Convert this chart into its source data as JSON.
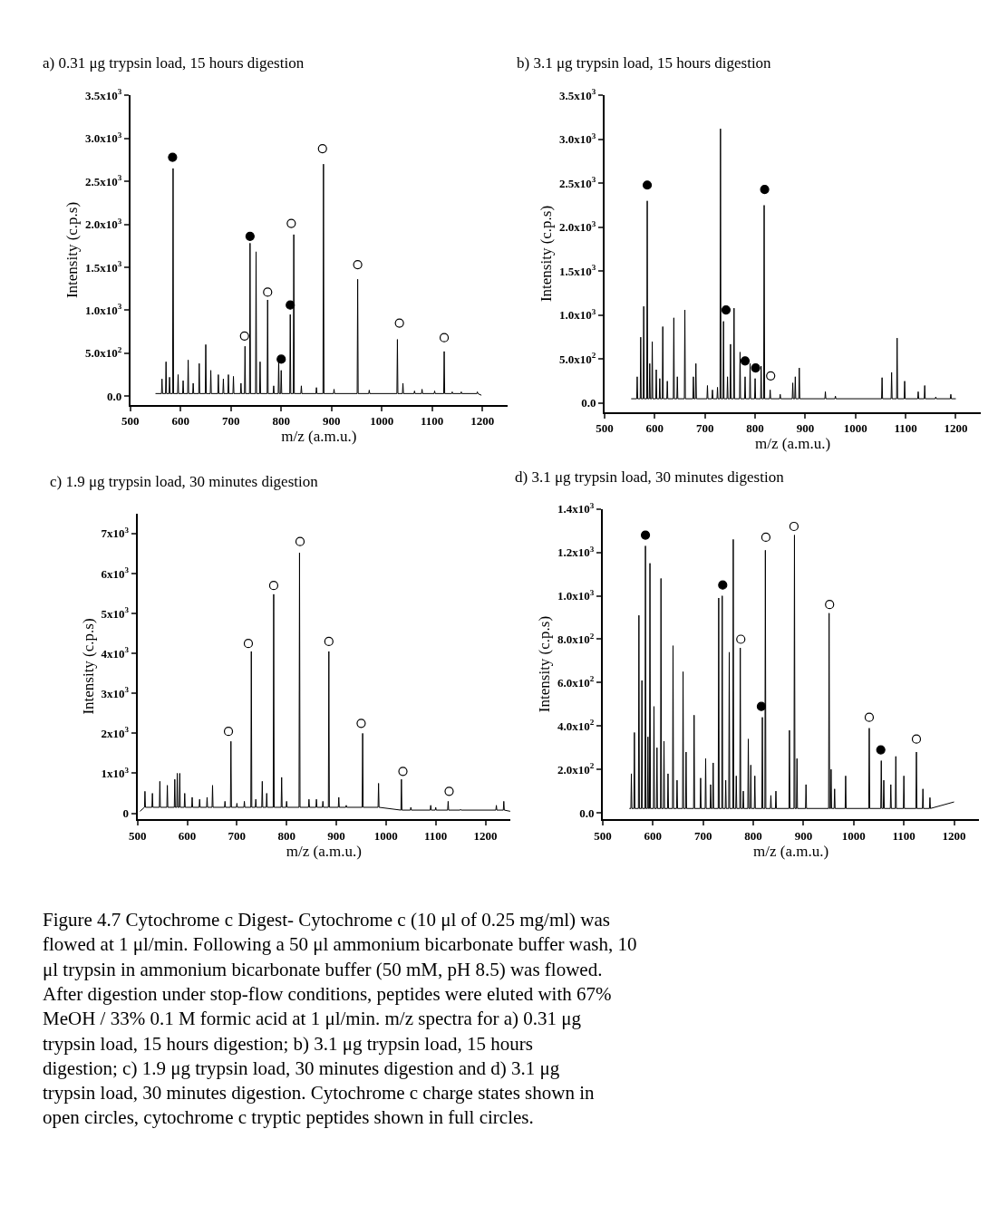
{
  "chart_data": [
    {
      "type": "line",
      "title": "a) 0.31 μg trypsin load, 15 hours digestion",
      "xlabel": "m/z (a.m.u.)",
      "ylabel": "Intensity (c.p.s)",
      "xlim": [
        500,
        1250
      ],
      "xticks": [
        500,
        600,
        700,
        800,
        900,
        1000,
        1100,
        1200
      ],
      "ylim": [
        -100,
        3500
      ],
      "yticks": [
        {
          "value": 0,
          "label": "0.0"
        },
        {
          "value": 500,
          "label": "5.0x10$^{2}$"
        },
        {
          "value": 1000,
          "label": "1.0x10$^{3}$"
        },
        {
          "value": 1500,
          "label": "1.5x10$^{3}$"
        },
        {
          "value": 2000,
          "label": "2.0x10$^{3}$"
        },
        {
          "value": 2500,
          "label": "2.5x10$^{3}$"
        },
        {
          "value": 3000,
          "label": "3.0x10$^{3}$"
        },
        {
          "value": 3500,
          "label": "3.5x10$^{3}$"
        }
      ],
      "series": [
        {
          "color": "#000000",
          "x": [
            550,
            562,
            563,
            564,
            570,
            571,
            572,
            577,
            578,
            579,
            584,
            585,
            586,
            594,
            595,
            596,
            604,
            605,
            606,
            614,
            615,
            616,
            624,
            625,
            626,
            636,
            637,
            638,
            649,
            650,
            651,
            659,
            660,
            661,
            674,
            675,
            676,
            684,
            685,
            686,
            694,
            695,
            696,
            704,
            705,
            706,
            719,
            720,
            721,
            727,
            728,
            729,
            737,
            738,
            739,
            749,
            750,
            751,
            757,
            758,
            759,
            772,
            773,
            774,
            784,
            785,
            786,
            794,
            795,
            796,
            799,
            800,
            801,
            817,
            818,
            819,
            824,
            825,
            826,
            839,
            840,
            841,
            869,
            870,
            871,
            883,
            884,
            885,
            904,
            905,
            906,
            951,
            952,
            953,
            974,
            975,
            976,
            1030,
            1031,
            1032,
            1041,
            1042,
            1043,
            1064,
            1065,
            1066,
            1079,
            1080,
            1081,
            1104,
            1105,
            1106,
            1123,
            1124,
            1125,
            1139,
            1140,
            1141,
            1157,
            1158,
            1159,
            1189,
            1190,
            1191,
            1198
          ],
          "values": [
            30,
            30,
            200,
            30,
            30,
            400,
            30,
            30,
            220,
            30,
            30,
            2650,
            30,
            30,
            250,
            30,
            30,
            180,
            30,
            30,
            420,
            30,
            30,
            150,
            30,
            30,
            380,
            30,
            30,
            600,
            30,
            30,
            300,
            30,
            30,
            250,
            30,
            30,
            200,
            30,
            30,
            250,
            30,
            30,
            230,
            30,
            30,
            150,
            30,
            30,
            580,
            30,
            30,
            1780,
            30,
            30,
            1680,
            30,
            30,
            400,
            30,
            30,
            1120,
            30,
            30,
            120,
            30,
            30,
            420,
            30,
            30,
            300,
            30,
            30,
            950,
            30,
            30,
            1880,
            30,
            30,
            120,
            30,
            30,
            100,
            30,
            30,
            2700,
            30,
            30,
            80,
            30,
            30,
            1360,
            30,
            30,
            70,
            30,
            30,
            660,
            30,
            30,
            150,
            30,
            30,
            60,
            30,
            30,
            80,
            30,
            30,
            60,
            30,
            30,
            520,
            30,
            30,
            50,
            30,
            30,
            50,
            30,
            30,
            50,
            30,
            10
          ]
        },
        {
          "type": "scatter",
          "marker": "circle",
          "color": "#000000",
          "x": [
            584,
            738,
            800,
            818
          ],
          "values": [
            2780,
            1860,
            430,
            1060
          ]
        },
        {
          "type": "scatter",
          "marker": "circle",
          "color": "#ffffff",
          "x": [
            727,
            773,
            820,
            882,
            952,
            1035,
            1124
          ],
          "values": [
            700,
            1210,
            2010,
            2880,
            1530,
            850,
            680
          ]
        }
      ]
    },
    {
      "type": "line",
      "title": "b) 3.1 μg trypsin load, 15 hours digestion",
      "xlabel": "m/z (a.m.u.)",
      "ylabel": "Intensity (c.p.s)",
      "xlim": [
        500,
        1250
      ],
      "xticks": [
        500,
        600,
        700,
        800,
        900,
        1000,
        1100,
        1200
      ],
      "ylim": [
        -100,
        3500
      ],
      "yticks": [
        {
          "value": 0,
          "label": "0.0"
        },
        {
          "value": 500,
          "label": "5.0x10$^{2}$"
        },
        {
          "value": 1000,
          "label": "1.0x10$^{3}$"
        },
        {
          "value": 1500,
          "label": "1.5x10$^{3}$"
        },
        {
          "value": 2000,
          "label": "2.0x10$^{3}$"
        },
        {
          "value": 2500,
          "label": "2.5x10$^{3}$"
        },
        {
          "value": 3000,
          "label": "3.0x10$^{3}$"
        },
        {
          "value": 3500,
          "label": "3.5x10$^{3}$"
        }
      ],
      "series": [
        {
          "color": "#000000",
          "x": [
            553,
            564,
            565,
            566,
            571,
            572,
            573,
            577,
            578,
            579,
            584,
            585,
            586,
            589,
            590,
            591,
            594,
            595,
            596,
            602,
            603,
            604,
            609,
            610,
            611,
            615,
            616,
            617,
            624,
            625,
            626,
            637,
            638,
            639,
            644,
            645,
            646,
            659,
            660,
            661,
            676,
            677,
            678,
            681,
            682,
            683,
            704,
            705,
            706,
            714,
            715,
            716,
            724,
            725,
            726,
            730,
            731,
            732,
            736,
            737,
            738,
            744,
            745,
            746,
            750,
            751,
            752,
            757,
            758,
            759,
            769,
            770,
            771,
            779,
            780,
            781,
            789,
            790,
            791,
            799,
            800,
            801,
            811,
            812,
            813,
            817,
            818,
            819,
            829,
            830,
            831,
            849,
            850,
            851,
            874,
            875,
            876,
            879,
            880,
            881,
            887,
            888,
            889,
            939,
            940,
            941,
            959,
            960,
            961,
            1052,
            1053,
            1054,
            1071,
            1072,
            1073,
            1082,
            1083,
            1084,
            1097,
            1098,
            1099,
            1124,
            1125,
            1126,
            1137,
            1138,
            1139,
            1159,
            1160,
            1161,
            1189,
            1190,
            1191,
            1200
          ],
          "values": [
            50,
            50,
            300,
            50,
            50,
            750,
            50,
            50,
            1100,
            50,
            50,
            2300,
            50,
            50,
            450,
            50,
            50,
            700,
            50,
            50,
            380,
            50,
            50,
            280,
            50,
            50,
            870,
            50,
            50,
            250,
            50,
            50,
            970,
            50,
            50,
            300,
            50,
            50,
            1060,
            50,
            50,
            300,
            50,
            50,
            450,
            50,
            50,
            200,
            50,
            50,
            150,
            50,
            50,
            180,
            50,
            50,
            3120,
            50,
            50,
            930,
            50,
            50,
            300,
            50,
            50,
            670,
            50,
            50,
            1080,
            50,
            50,
            580,
            50,
            50,
            300,
            50,
            50,
            450,
            50,
            50,
            280,
            50,
            50,
            420,
            50,
            50,
            2250,
            50,
            50,
            150,
            50,
            50,
            100,
            50,
            50,
            230,
            50,
            50,
            300,
            50,
            50,
            400,
            50,
            50,
            130,
            50,
            50,
            80,
            50,
            50,
            290,
            50,
            50,
            350,
            50,
            50,
            740,
            50,
            50,
            250,
            50,
            50,
            130,
            50,
            50,
            200,
            50,
            50,
            70,
            50,
            50,
            100,
            50,
            50
          ]
        },
        {
          "type": "scatter",
          "marker": "circle",
          "color": "#000000",
          "x": [
            585,
            742,
            780,
            801,
            819
          ],
          "values": [
            2480,
            1060,
            480,
            400,
            2430
          ]
        },
        {
          "type": "scatter",
          "marker": "circle",
          "color": "#ffffff",
          "x": [
            831
          ],
          "values": [
            310
          ]
        }
      ]
    },
    {
      "type": "line",
      "title": "c) 1.9 μg trypsin load, 30 minutes digestion",
      "xlabel": "m/z (a.m.u.)",
      "ylabel": "Intensity (c.p.s)",
      "xlim": [
        500,
        1250
      ],
      "xticks": [
        500,
        600,
        700,
        800,
        900,
        1000,
        1100,
        1200
      ],
      "ylim": [
        -150,
        7500
      ],
      "yticks": [
        0,
        {
          "value": 1000,
          "label": "1x10$^{3}$"
        },
        {
          "value": 2000,
          "label": "2x10$^{3}$"
        },
        {
          "value": 3000,
          "label": "3x10$^{3}$"
        },
        {
          "value": 4000,
          "label": "4x10$^{3}$"
        },
        {
          "value": 5000,
          "label": "5x10$^{3}$"
        },
        {
          "value": 6000,
          "label": "6x10$^{3}$"
        },
        {
          "value": 7000,
          "label": "7x10$^{3}$"
        }
      ],
      "series": [
        {
          "color": "#000000",
          "x": [
            505,
            514,
            515,
            516,
            529,
            530,
            531,
            544,
            545,
            546,
            559,
            560,
            561,
            574,
            575,
            576,
            579,
            580,
            581,
            584,
            585,
            586,
            594,
            595,
            596,
            609,
            610,
            611,
            624,
            625,
            626,
            639,
            640,
            641,
            650,
            651,
            652,
            675,
            676,
            677,
            687,
            688,
            689,
            699,
            700,
            701,
            714,
            715,
            716,
            728,
            729,
            730,
            737,
            738,
            739,
            750,
            751,
            752,
            759,
            760,
            761,
            773,
            774,
            775,
            789,
            790,
            791,
            799,
            800,
            801,
            825,
            826,
            827,
            844,
            845,
            846,
            859,
            860,
            861,
            872,
            873,
            874,
            884,
            885,
            886,
            904,
            905,
            906,
            919,
            920,
            921,
            952,
            953,
            954,
            984,
            985,
            986,
            1030,
            1031,
            1032,
            1049,
            1050,
            1051,
            1089,
            1090,
            1091,
            1099,
            1100,
            1101,
            1124,
            1125,
            1126,
            1149,
            1150,
            1151,
            1221,
            1222,
            1223,
            1236,
            1237,
            1238,
            1250
          ],
          "values": [
            50,
            150,
            550,
            150,
            150,
            500,
            150,
            150,
            800,
            150,
            150,
            700,
            150,
            150,
            850,
            150,
            150,
            1000,
            150,
            150,
            1000,
            150,
            150,
            500,
            150,
            150,
            400,
            150,
            150,
            350,
            150,
            150,
            400,
            150,
            150,
            700,
            150,
            150,
            300,
            150,
            150,
            1800,
            150,
            150,
            250,
            150,
            150,
            300,
            150,
            150,
            4050,
            150,
            150,
            350,
            150,
            150,
            800,
            150,
            150,
            500,
            150,
            150,
            5480,
            150,
            150,
            900,
            150,
            150,
            300,
            150,
            150,
            6520,
            150,
            150,
            350,
            150,
            150,
            350,
            150,
            150,
            300,
            150,
            150,
            4050,
            150,
            150,
            400,
            150,
            150,
            200,
            150,
            150,
            2000,
            150,
            150,
            750,
            150,
            80,
            850,
            80,
            80,
            150,
            80,
            80,
            200,
            80,
            80,
            150,
            80,
            80,
            300,
            80,
            80,
            100,
            80,
            80,
            200,
            80,
            80,
            300,
            80,
            50
          ]
        },
        {
          "type": "scatter",
          "marker": "circle",
          "color": "#ffffff",
          "x": [
            683,
            723,
            774,
            827,
            885,
            950,
            1034,
            1127
          ],
          "values": [
            2050,
            4250,
            5700,
            6800,
            4300,
            2250,
            1050,
            550
          ]
        }
      ]
    },
    {
      "type": "line",
      "title": "d) 3.1 μg trypsin load, 30 minutes digestion",
      "xlabel": "m/z (a.m.u.)",
      "ylabel": "Intensity (c.p.s)",
      "xlim": [
        500,
        1250
      ],
      "xticks": [
        500,
        600,
        700,
        800,
        900,
        1000,
        1100,
        1200
      ],
      "ylim": [
        -30,
        1400
      ],
      "yticks": [
        {
          "value": 0,
          "label": "0.0"
        },
        {
          "value": 200,
          "label": "2.0x10$^{2}$"
        },
        {
          "value": 400,
          "label": "4.0x10$^{2}$"
        },
        {
          "value": 600,
          "label": "6.0x10$^{2}$"
        },
        {
          "value": 800,
          "label": "8.0x10$^{2}$"
        },
        {
          "value": 1000,
          "label": "1.0x10$^{3}$"
        },
        {
          "value": 1200,
          "label": "1.2x10$^{3}$"
        },
        {
          "value": 1400,
          "label": "1.4x10$^{3}$"
        }
      ],
      "annotations": [
        "Figure 4.7 Cytochrome c Digest- Cytochrome c (10 μl of 0.25 mg/ml) was flowed at 1 μl/min. Following a 50 μl ammonium bicarbonate buffer wash, 10 μl trypsin in ammonium bicarbonate buffer (50 mM, pH 8.5) was flowed. After digestion under stop-flow conditions, peptides were eluted with 67% MeOH / 33% 0.1 M formic acid at 1 μl/min. m/z spectra for a) 0.31 μg trypsin load, 15 hours digestion; b) 3.1 μg trypsin load, 15 hours digestion; c) 1.9 μg trypsin load, 30 minutes digestion and d) 3.1 μg trypsin load, 30 minutes digestion. Cytochrome c charge states shown in open circles, cytochrome c tryptic peptides shown in full circles."
      ],
      "series": [
        {
          "color": "#000000",
          "x": [
            553,
            556,
            557,
            558,
            562,
            563,
            564,
            571,
            572,
            573,
            577,
            578,
            579,
            584,
            585,
            586,
            589,
            590,
            591,
            593,
            594,
            595,
            601,
            602,
            603,
            607,
            608,
            609,
            615,
            616,
            617,
            621,
            622,
            623,
            629,
            630,
            631,
            639,
            640,
            641,
            647,
            648,
            649,
            659,
            660,
            661,
            665,
            666,
            667,
            681,
            682,
            683,
            694,
            695,
            696,
            704,
            705,
            706,
            714,
            715,
            716,
            719,
            720,
            721,
            730,
            731,
            732,
            737,
            738,
            739,
            744,
            745,
            746,
            751,
            752,
            753,
            759,
            760,
            761,
            765,
            766,
            767,
            773,
            774,
            775,
            779,
            780,
            781,
            789,
            790,
            791,
            794,
            795,
            796,
            802,
            803,
            804,
            817,
            818,
            819,
            823,
            824,
            825,
            834,
            835,
            836,
            844,
            845,
            846,
            871,
            872,
            873,
            881,
            882,
            883,
            886,
            887,
            888,
            904,
            905,
            906,
            950,
            951,
            952,
            954,
            955,
            956,
            961,
            962,
            963,
            983,
            984,
            985,
            1030,
            1031,
            1032,
            1054,
            1055,
            1056,
            1059,
            1060,
            1061,
            1073,
            1074,
            1075,
            1083,
            1084,
            1085,
            1099,
            1100,
            1101,
            1124,
            1125,
            1126,
            1137,
            1138,
            1139,
            1151,
            1152,
            1153,
            1200
          ],
          "values": [
            20,
            20,
            180,
            20,
            20,
            370,
            20,
            20,
            910,
            20,
            20,
            610,
            20,
            20,
            1230,
            20,
            20,
            350,
            20,
            20,
            1150,
            20,
            20,
            490,
            20,
            20,
            300,
            20,
            20,
            1080,
            20,
            20,
            330,
            20,
            20,
            180,
            20,
            20,
            770,
            20,
            20,
            150,
            20,
            20,
            650,
            20,
            20,
            280,
            20,
            20,
            450,
            20,
            20,
            160,
            20,
            20,
            250,
            20,
            20,
            130,
            20,
            20,
            230,
            20,
            20,
            990,
            20,
            20,
            1000,
            20,
            20,
            150,
            20,
            20,
            740,
            20,
            20,
            1260,
            20,
            20,
            170,
            20,
            20,
            760,
            20,
            20,
            100,
            20,
            20,
            340,
            20,
            20,
            220,
            20,
            20,
            170,
            20,
            20,
            440,
            20,
            20,
            1210,
            20,
            20,
            80,
            20,
            20,
            100,
            20,
            20,
            380,
            20,
            20,
            1280,
            20,
            20,
            250,
            20,
            20,
            130,
            20,
            20,
            920,
            20,
            20,
            200,
            20,
            20,
            110,
            20,
            20,
            170,
            20,
            20,
            390,
            20,
            20,
            240,
            20,
            20,
            150,
            20,
            20,
            130,
            20,
            20,
            260,
            20,
            20,
            170,
            20,
            20,
            280,
            20,
            20,
            110,
            20,
            20,
            70,
            20,
            50
          ]
        },
        {
          "type": "scatter",
          "marker": "circle",
          "color": "#000000",
          "x": [
            585,
            739,
            816,
            1054
          ],
          "values": [
            1280,
            1050,
            490,
            290
          ]
        },
        {
          "type": "scatter",
          "marker": "circle",
          "color": "#ffffff",
          "x": [
            775,
            825,
            881,
            952,
            1031,
            1125
          ],
          "values": [
            800,
            1270,
            1320,
            960,
            440,
            340
          ]
        }
      ]
    }
  ]
}
